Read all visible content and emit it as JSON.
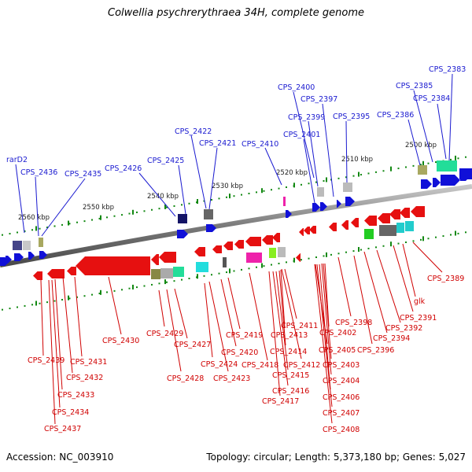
{
  "title": "Colwellia psychrerythraea 34H, complete genome",
  "footer": {
    "accession": "Accession: NC_003910",
    "summary": "Topology: circular; Length: 5,373,180 bp; Genes: 5,027"
  },
  "colors": {
    "forward": "#1010d8",
    "reverse": "#e61010",
    "backbone": "#8a8a8a",
    "tick": "#118811"
  },
  "scale_labels": [
    "2500 kbp",
    "2510 kbp",
    "2520 kbp",
    "2530 kbp",
    "2540 kbp",
    "2550 kbp",
    "2560 kbp"
  ],
  "gene_labels_forward": [
    "rarD2",
    "CPS_2436",
    "CPS_2435",
    "CPS_2426",
    "CPS_2425",
    "CPS_2422",
    "CPS_2421",
    "CPS_2410",
    "CPS_2401",
    "CPS_2400",
    "CPS_2399",
    "CPS_2397",
    "CPS_2395",
    "CPS_2386",
    "CPS_2385",
    "CPS_2384",
    "CPS_2383"
  ],
  "gene_labels_reverse": [
    "CPS_2439",
    "CPS_2437",
    "CPS_2434",
    "CPS_2433",
    "CPS_2432",
    "CPS_2431",
    "CPS_2430",
    "CPS_2429",
    "CPS_2428",
    "CPS_2427",
    "CPS_2424",
    "CPS_2423",
    "CPS_2420",
    "CPS_2419",
    "CPS_2418",
    "CPS_2417",
    "CPS_2416",
    "CPS_2415",
    "CPS_2414",
    "CPS_2413",
    "CPS_2412",
    "CPS_2411",
    "CPS_2408",
    "CPS_2407",
    "CPS_2406",
    "CPS_2405",
    "CPS_2404",
    "CPS_2403",
    "CPS_2402",
    "CPS_2398",
    "CPS_2396",
    "CPS_2394",
    "CPS_2392",
    "CPS_2391",
    "glk",
    "CPS_2389"
  ]
}
